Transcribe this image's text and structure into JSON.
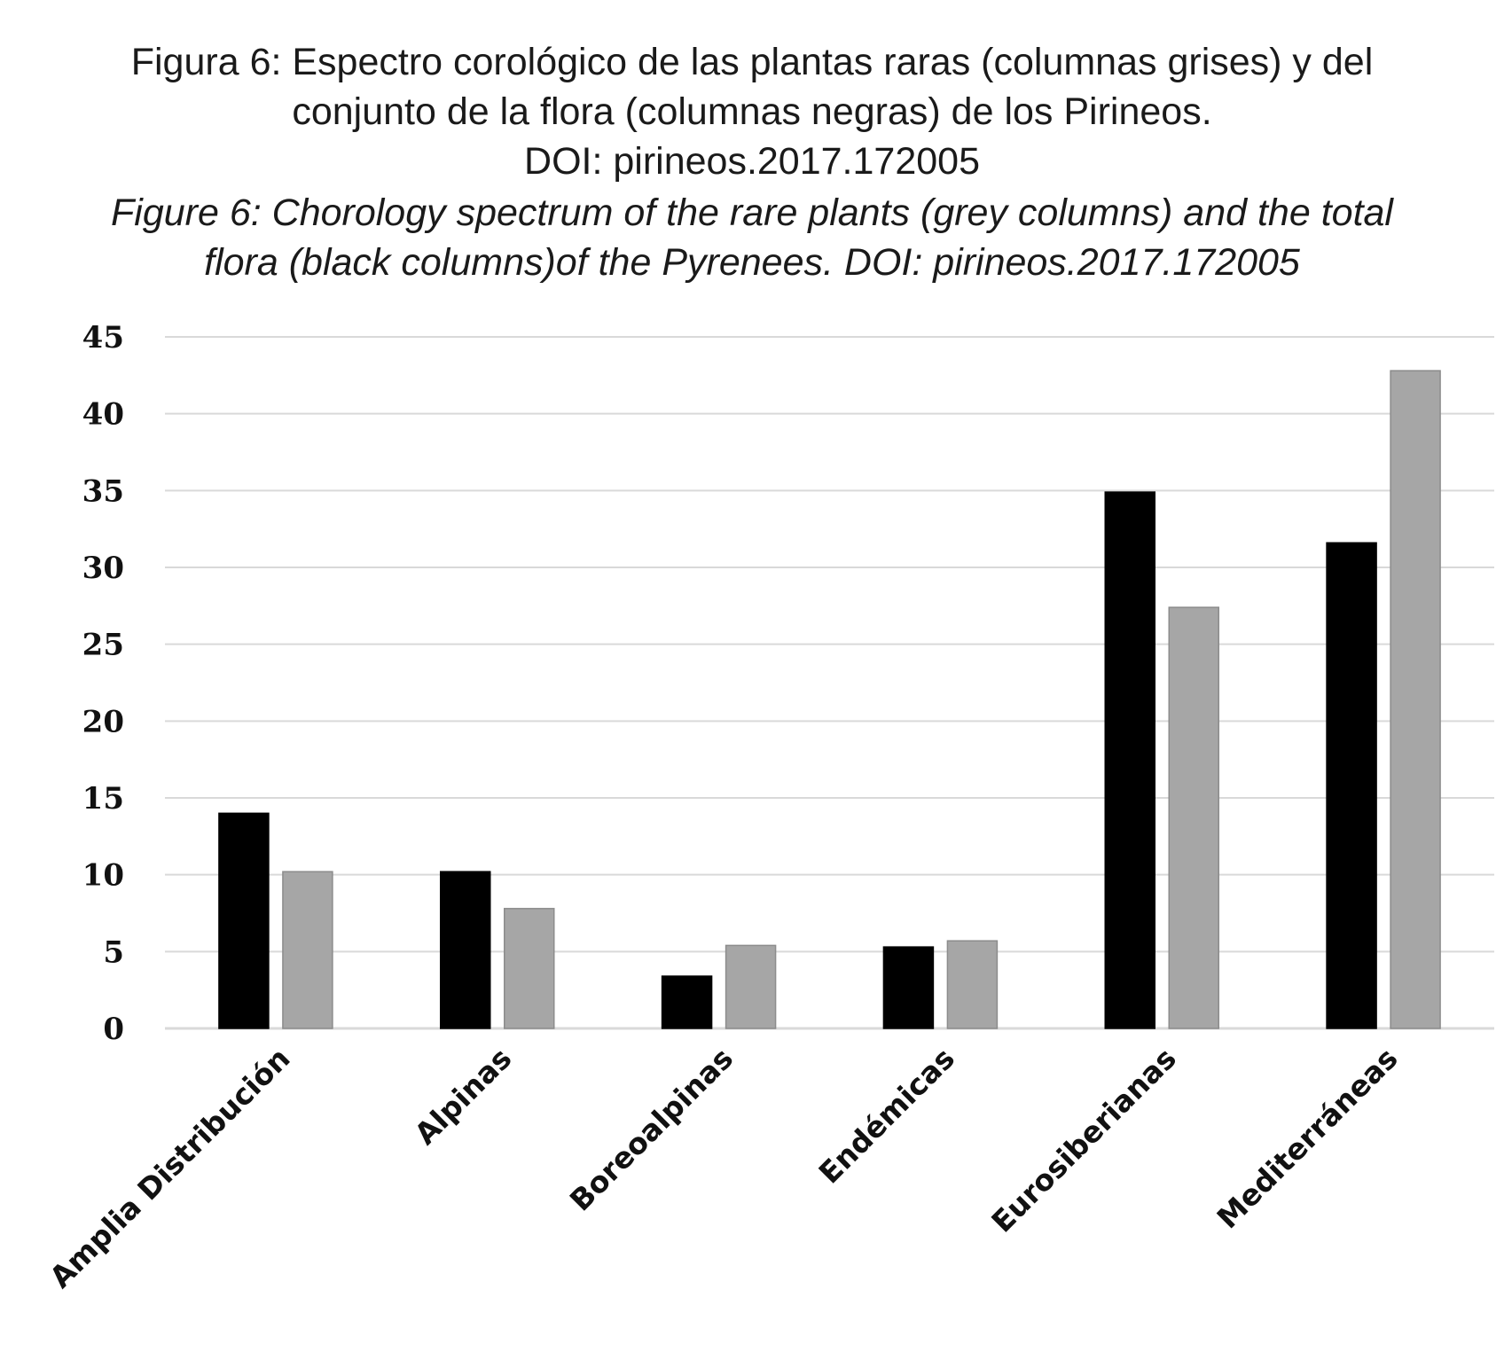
{
  "caption": {
    "es_line1": "Figura 6: Espectro corológico de las plantas raras (columnas grises) y del",
    "es_line2": "conjunto de la flora (columnas negras) de los Pirineos.",
    "es_line3": "DOI: pirineos.2017.172005",
    "en_line1": "Figure 6: Chorology spectrum of  the rare plants (grey columns) and the total",
    "en_line2": "flora (black columns)of  the Pyrenees. DOI: pirineos.2017.172005"
  },
  "chart_data": {
    "type": "bar",
    "title": "",
    "xlabel": "",
    "ylabel": "",
    "categories": [
      "Amplia Distribución",
      "Alpinas",
      "Boreoalpinas",
      "Endémicas",
      "Eurosiberianas",
      "Mediterráneas"
    ],
    "series": [
      {
        "color": "#000000",
        "values": [
          14,
          10.2,
          3.4,
          5.3,
          34.9,
          31.6
        ]
      },
      {
        "color": "#a6a6a6",
        "values": [
          10.2,
          7.8,
          5.4,
          5.7,
          27.4,
          42.8
        ]
      }
    ],
    "ylim": [
      0,
      45
    ],
    "yticks": [
      "0",
      "5",
      "10",
      "15",
      "20",
      "25",
      "30",
      "35",
      "40",
      "45"
    ],
    "grid": true,
    "legend": "none",
    "gridColor": "#d9d9d9"
  }
}
